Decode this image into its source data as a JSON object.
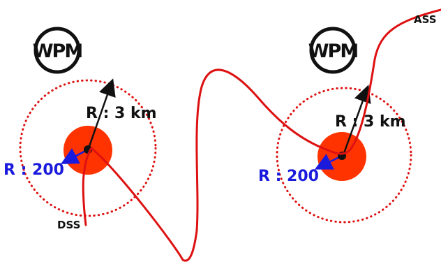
{
  "colors": {
    "track": "#dd1111",
    "zone_fill": "#ff3300",
    "zone_dotted": "#dd1111",
    "black": "#111111",
    "blue": "#1a1add",
    "wpm_ring": "#111111"
  },
  "waypoints": [
    {
      "id": "left",
      "badge": "WPM",
      "outer_radius_label": "R : 3 km",
      "inner_radius_label": "R : 200"
    },
    {
      "id": "right",
      "badge": "WPM",
      "outer_radius_label": "R : 3 km",
      "inner_radius_label": "R : 200"
    }
  ],
  "start_label": "DSS",
  "end_label": "ASS",
  "icons": {
    "badge": "wpm-badge-icon",
    "center": "waypoint-center-icon",
    "arrow": "radius-arrow-icon"
  }
}
